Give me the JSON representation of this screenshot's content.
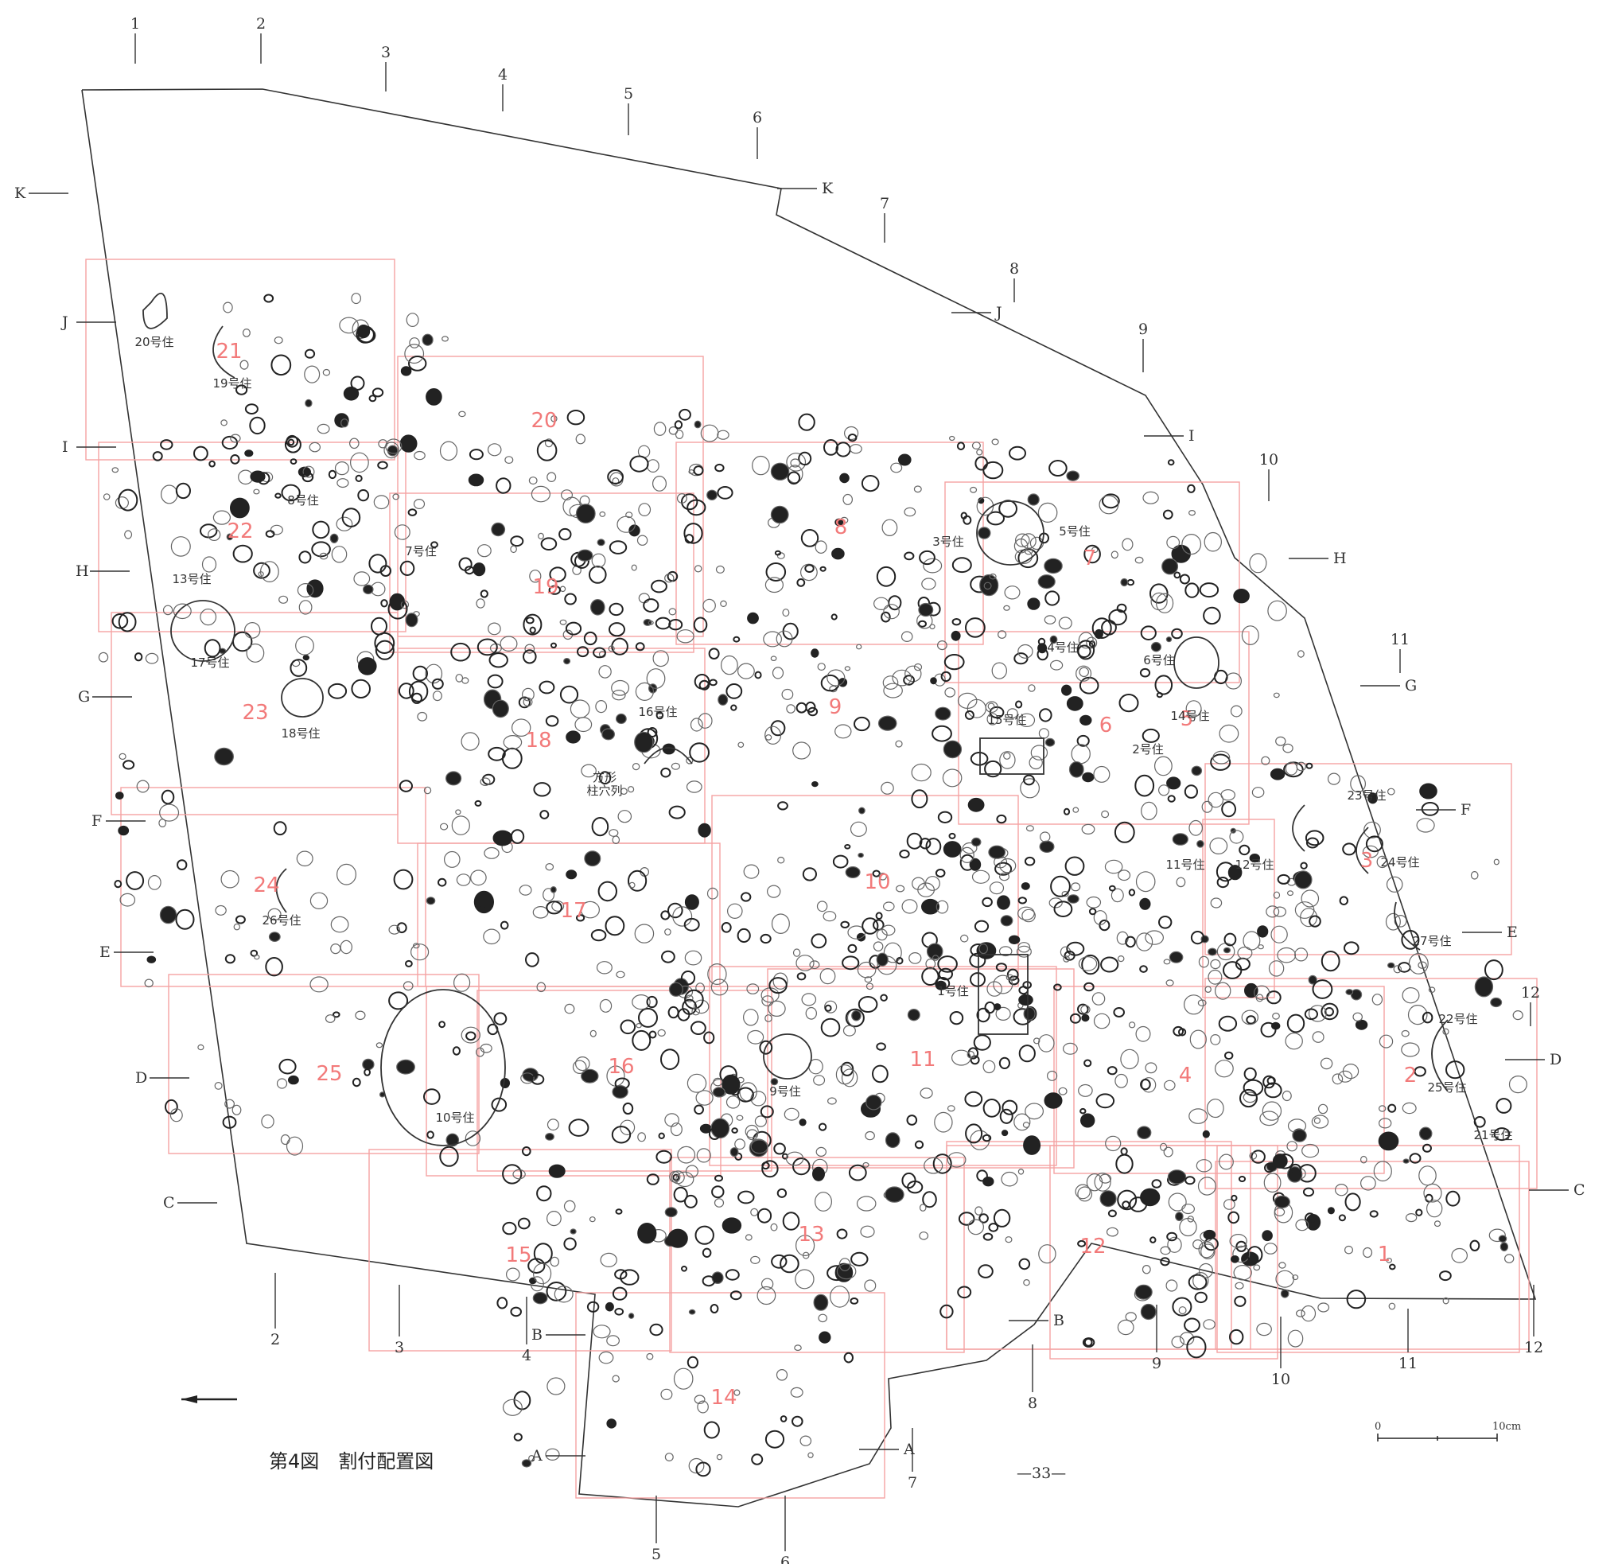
{
  "figure": {
    "caption": "第4図　割付配置図",
    "page_number": "—33—",
    "scale_bar": {
      "start_label": "0",
      "end_label": "10cm"
    }
  },
  "grid_columns": [
    "1",
    "2",
    "3",
    "4",
    "5",
    "6",
    "7",
    "8",
    "9",
    "10",
    "11",
    "12"
  ],
  "grid_rows": [
    "A",
    "B",
    "C",
    "D",
    "E",
    "F",
    "G",
    "H",
    "I",
    "J",
    "K"
  ],
  "section_numbers": [
    "1",
    "2",
    "3",
    "4",
    "5",
    "6",
    "7",
    "8",
    "9",
    "10",
    "11",
    "12",
    "13",
    "14",
    "15",
    "16",
    "17",
    "18",
    "19",
    "20",
    "21",
    "22",
    "23",
    "24",
    "25"
  ],
  "dwellings": [
    {
      "id": "h1",
      "label": "1号住"
    },
    {
      "id": "h2",
      "label": "2号住"
    },
    {
      "id": "h3",
      "label": "3号住"
    },
    {
      "id": "h4",
      "label": "4号住"
    },
    {
      "id": "h5",
      "label": "5号住"
    },
    {
      "id": "h6",
      "label": "6号住"
    },
    {
      "id": "h7",
      "label": "7号住"
    },
    {
      "id": "h8",
      "label": "8号住"
    },
    {
      "id": "h9",
      "label": "9号住"
    },
    {
      "id": "h10",
      "label": "10号住"
    },
    {
      "id": "h11",
      "label": "11号住"
    },
    {
      "id": "h12",
      "label": "12号住"
    },
    {
      "id": "h13",
      "label": "13号住"
    },
    {
      "id": "h14",
      "label": "14号住"
    },
    {
      "id": "h15",
      "label": "15号住"
    },
    {
      "id": "h16",
      "label": "16号住"
    },
    {
      "id": "h17",
      "label": "17号住"
    },
    {
      "id": "h18",
      "label": "18号住"
    },
    {
      "id": "h19",
      "label": "19号住"
    },
    {
      "id": "h20",
      "label": "20号住"
    },
    {
      "id": "h21",
      "label": "21号住"
    },
    {
      "id": "h22",
      "label": "22号住"
    },
    {
      "id": "h23",
      "label": "23号住"
    },
    {
      "id": "h24",
      "label": "24号住"
    },
    {
      "id": "h25",
      "label": "25号住"
    },
    {
      "id": "h26",
      "label": "26号住"
    },
    {
      "id": "h27",
      "label": "27号住"
    }
  ],
  "annotation": {
    "line1": "方形",
    "line2": "柱穴列"
  },
  "colors": {
    "section_lines": "#f4a3a3",
    "section_numbers": "#f27a7a",
    "boundary": "#333333",
    "features": "#222222"
  }
}
